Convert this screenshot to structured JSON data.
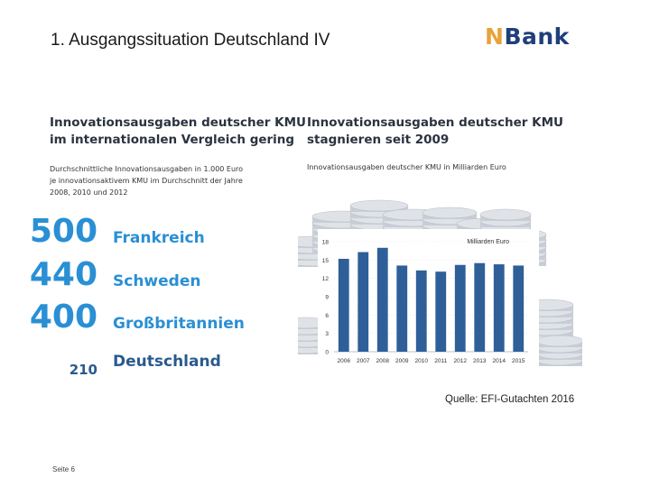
{
  "slide": {
    "title": "1. Ausgangssituation Deutschland IV",
    "logo_n": "N",
    "logo_rest": "Bank",
    "source": "Quelle: EFI-Gutachten 2016",
    "page_label": "Seite 6"
  },
  "left": {
    "heading_line1": "Innovationsausgaben deutscher KMU",
    "heading_line2": "im internationalen Vergleich gering",
    "sub_line1": "Durchschnittliche Innovationsausgaben in 1.000 Euro",
    "sub_line2": "je innovationsaktivem KMU im Durchschnitt der Jahre",
    "sub_line3": "2008, 2010 und 2012",
    "ranking": [
      {
        "value": "500",
        "country": "Frankreich"
      },
      {
        "value": "440",
        "country": "Schweden"
      },
      {
        "value": "400",
        "country": "Großbritannien"
      },
      {
        "value": "210",
        "country": "Deutschland"
      }
    ]
  },
  "right": {
    "heading_line1": "Innovationsausgaben deutscher KMU",
    "heading_line2": "stagnieren seit 2009",
    "sub": "Innovationsausgaben deutscher KMU in Milliarden Euro"
  },
  "colors": {
    "accent_blue": "#2a8fd4",
    "dark_blue": "#2a5a8e",
    "bar_blue": "#2f5f98",
    "logo_orange": "#e8a23a",
    "logo_navy": "#1f3f7a"
  },
  "chart_data": {
    "type": "bar",
    "unit_label": "Milliarden Euro",
    "categories": [
      "2006",
      "2007",
      "2008",
      "2009",
      "2010",
      "2011",
      "2012",
      "2013",
      "2014",
      "2015"
    ],
    "series": [
      {
        "values": [
          15.2,
          16.3,
          17.0,
          14.1,
          13.3,
          13.1,
          14.2,
          14.5,
          14.3,
          14.1
        ]
      }
    ],
    "yticks": [
      0,
      3,
      6,
      9,
      12,
      15,
      18
    ],
    "ylim": [
      0,
      18
    ]
  }
}
